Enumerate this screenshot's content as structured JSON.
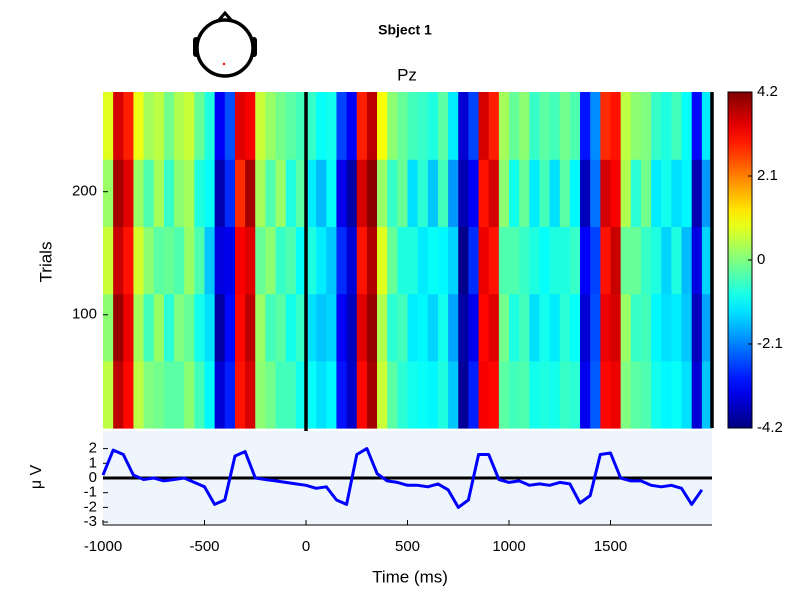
{
  "chart_data": {
    "type": "erpimage",
    "title": "Sbject 1",
    "channel": "Pz",
    "xlabel": "Time (ms)",
    "ylabel": "Trials",
    "xlim": [
      -1000,
      2000
    ],
    "xticks": [
      -1000,
      -500,
      0,
      500,
      1000,
      1500
    ],
    "ylim": [
      8,
      281
    ],
    "yticks": [
      100,
      200
    ],
    "colormap": "jet",
    "clim": [
      -4.2,
      4.2
    ],
    "cticks": [
      4.2,
      2.1,
      0,
      -2.1,
      -4.2
    ],
    "time_marker": 0,
    "z": [
      [
        0.5,
        3.7,
        3.1,
        0.5,
        0.0,
        -0.1,
        -0.3,
        -0.3,
        0.1,
        -0.5,
        -1.1,
        -3.5,
        -2.9,
        3.0,
        3.5,
        0.1,
        -0.1,
        -0.5,
        -0.5,
        -0.9,
        -1.0,
        -1.3,
        -1.1,
        -3.0,
        -3.6,
        3.1,
        3.9,
        0.6,
        -0.3,
        -0.7,
        -0.9,
        -1.0,
        -1.1,
        -0.8,
        -1.5,
        -4.0,
        -2.9,
        3.2,
        3.1,
        -0.3,
        -0.5,
        -0.4,
        -0.9,
        -0.8,
        -0.9,
        -0.6,
        -0.7,
        -3.3,
        -2.4,
        3.1,
        3.3,
        0.0,
        -0.3,
        -0.4,
        -0.9,
        -1.1,
        -1.0,
        -1.3,
        -3.5,
        -1.5
      ],
      [
        0.1,
        4.0,
        3.3,
        0.3,
        -0.5,
        0.2,
        -0.7,
        0.0,
        -0.2,
        -0.9,
        -1.3,
        -3.9,
        -3.1,
        3.1,
        3.7,
        0.2,
        -0.5,
        -0.3,
        -0.9,
        -0.6,
        -1.3,
        -1.5,
        -1.4,
        -3.2,
        -3.7,
        3.4,
        4.0,
        0.4,
        -0.7,
        -0.5,
        -1.2,
        -1.1,
        -1.4,
        -0.9,
        -1.8,
        -3.9,
        -3.3,
        3.1,
        3.4,
        -0.1,
        -0.8,
        -0.5,
        -1.3,
        -0.9,
        -1.2,
        -0.7,
        -1.0,
        -3.5,
        -2.5,
        3.3,
        3.5,
        0.2,
        -0.6,
        -0.5,
        -1.1,
        -1.3,
        -1.2,
        -1.5,
        -3.7,
        -1.8
      ],
      [
        0.6,
        3.6,
        3.0,
        0.7,
        0.1,
        -0.3,
        -0.2,
        -0.4,
        0.2,
        -0.4,
        -1.5,
        -3.4,
        -3.3,
        3.2,
        3.4,
        -0.2,
        0.1,
        -0.6,
        -0.4,
        -1.0,
        -0.8,
        -1.2,
        -1.5,
        -2.8,
        -3.5,
        3.0,
        3.8,
        0.8,
        -0.2,
        -0.8,
        -0.8,
        -1.2,
        -1.0,
        -1.1,
        -1.4,
        -4.1,
        -2.8,
        3.3,
        3.0,
        -0.4,
        -0.4,
        -0.6,
        -0.8,
        -1.0,
        -0.8,
        -0.8,
        -0.6,
        -3.2,
        -2.6,
        3.0,
        3.6,
        -0.2,
        -0.2,
        -0.6,
        -0.8,
        -1.4,
        -0.8,
        -1.6,
        -3.4,
        -1.4
      ],
      [
        0.2,
        3.9,
        3.4,
        0.2,
        -0.4,
        0.3,
        -0.6,
        0.1,
        0.3,
        -0.8,
        -1.0,
        -3.8,
        -2.8,
        2.8,
        3.9,
        0.3,
        -0.4,
        0.2,
        -0.8,
        -0.3,
        -1.2,
        -1.6,
        -1.0,
        -3.3,
        -3.9,
        3.5,
        4.1,
        0.2,
        -0.6,
        -0.2,
        -1.3,
        -0.7,
        -1.5,
        -0.5,
        -1.9,
        -3.8,
        -3.2,
        3.0,
        3.5,
        0.1,
        -0.9,
        -0.2,
        -1.2,
        -0.5,
        -1.3,
        -0.3,
        -1.1,
        -3.7,
        -2.2,
        3.5,
        3.2,
        0.4,
        -0.7,
        -0.1,
        -1.2,
        -0.9,
        -1.3,
        -1.1,
        -3.8,
        -1.9
      ],
      [
        0.8,
        3.5,
        2.9,
        0.9,
        0.3,
        0.5,
        -0.1,
        0.4,
        0.6,
        -0.2,
        -0.8,
        -3.2,
        -2.5,
        3.4,
        3.2,
        0.6,
        0.2,
        -0.1,
        -0.3,
        -0.5,
        -0.6,
        -1.0,
        -0.9,
        -2.6,
        -3.2,
        2.9,
        3.7,
        1.0,
        0.1,
        -0.2,
        -0.5,
        -0.6,
        -0.8,
        -0.3,
        -1.2,
        -3.5,
        -2.6,
        3.5,
        2.9,
        0.3,
        -0.2,
        0.1,
        -0.6,
        -0.3,
        -0.5,
        -0.1,
        -0.4,
        -3.0,
        -2.0,
        2.8,
        3.0,
        0.5,
        0.1,
        0.0,
        -0.6,
        -0.8,
        -0.5,
        -1.0,
        -3.1,
        -1.2
      ]
    ],
    "erp": {
      "ylabel": "μ V",
      "color": "#0000ff",
      "ylim": [
        -3.2,
        3.2
      ],
      "yticks": [
        2,
        1,
        0,
        -1,
        -2,
        -3
      ],
      "x": [
        -1000,
        -950,
        -900,
        -850,
        -800,
        -750,
        -700,
        -650,
        -600,
        -550,
        -500,
        -450,
        -400,
        -350,
        -300,
        -250,
        -200,
        -150,
        -100,
        -50,
        0,
        50,
        100,
        150,
        200,
        250,
        300,
        350,
        400,
        450,
        500,
        550,
        600,
        650,
        700,
        750,
        800,
        850,
        900,
        950,
        1000,
        1050,
        1100,
        1150,
        1200,
        1250,
        1300,
        1350,
        1400,
        1450,
        1500,
        1550,
        1600,
        1650,
        1700,
        1750,
        1800,
        1850,
        1900,
        1950
      ],
      "values": [
        0.2,
        1.9,
        1.6,
        0.2,
        -0.1,
        0.0,
        -0.2,
        -0.1,
        0.0,
        -0.3,
        -0.6,
        -1.8,
        -1.5,
        1.5,
        1.8,
        0.0,
        -0.1,
        -0.2,
        -0.3,
        -0.4,
        -0.5,
        -0.7,
        -0.6,
        -1.5,
        -1.8,
        1.6,
        2.0,
        0.3,
        -0.2,
        -0.3,
        -0.5,
        -0.5,
        -0.6,
        -0.4,
        -0.8,
        -2.0,
        -1.5,
        1.6,
        1.6,
        -0.1,
        -0.3,
        -0.2,
        -0.5,
        -0.4,
        -0.5,
        -0.3,
        -0.4,
        -1.7,
        -1.2,
        1.6,
        1.7,
        0.0,
        -0.2,
        -0.2,
        -0.5,
        -0.6,
        -0.5,
        -0.7,
        -1.8,
        -0.8
      ]
    }
  }
}
